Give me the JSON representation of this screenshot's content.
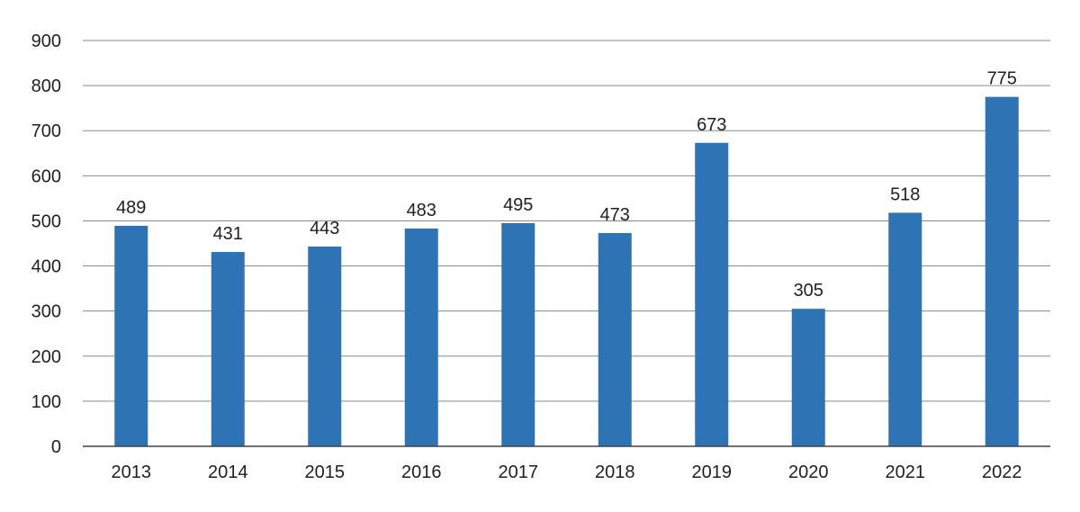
{
  "chart_data": {
    "type": "bar",
    "title": "",
    "xlabel": "",
    "ylabel": "",
    "categories": [
      "2013",
      "2014",
      "2015",
      "2016",
      "2017",
      "2018",
      "2019",
      "2020",
      "2021",
      "2022"
    ],
    "values": [
      489,
      431,
      443,
      483,
      495,
      473,
      673,
      305,
      518,
      775
    ],
    "value_labels_shown": true,
    "ylim": [
      0,
      900
    ],
    "ytick_step": 100,
    "ytick_labels": [
      "0",
      "100",
      "200",
      "300",
      "400",
      "500",
      "600",
      "700",
      "800",
      "900"
    ],
    "grid": "horizontal",
    "legend": false,
    "colors": {
      "bar": "#2E74B5",
      "gridline": "#8A8A8A",
      "axis_line": "#404040",
      "text": "#1F1F1F",
      "background": "#FFFFFF"
    }
  }
}
